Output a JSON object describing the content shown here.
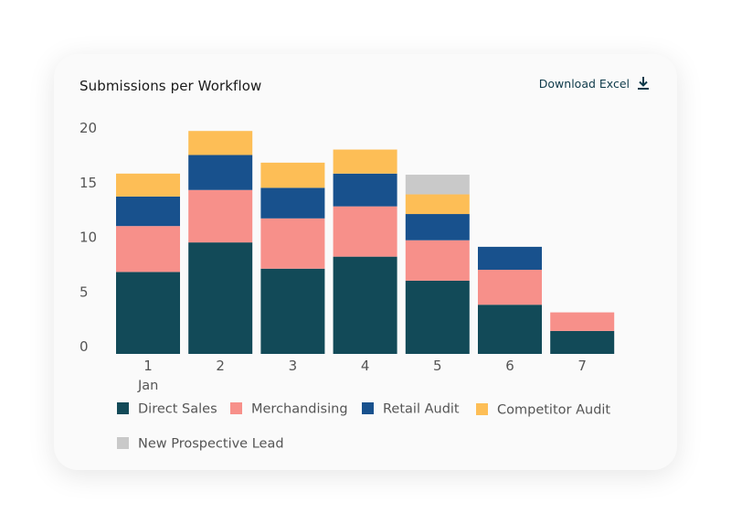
{
  "header": {
    "title": "Submissions per Workflow",
    "download_label": "Download Excel"
  },
  "colors": {
    "Direct Sales": "#124a58",
    "Merchandising": "#f7908a",
    "Retail Audit": "#18518d",
    "Competitor Audit": "#fdbe56",
    "New Prospective Lead": "#c9c9c9"
  },
  "chart_data": {
    "type": "bar",
    "stacked": true,
    "title": "Submissions per Workflow",
    "categories": [
      "1",
      "2",
      "3",
      "4",
      "5",
      "6",
      "7"
    ],
    "x_sublabel": "Jan",
    "ylim": [
      0,
      20
    ],
    "yticks": [
      0,
      5,
      10,
      15,
      20
    ],
    "grid": false,
    "legend_position": "bottom",
    "series": [
      {
        "name": "Direct Sales",
        "values": [
          7.5,
          10.2,
          7.8,
          8.9,
          6.7,
          4.5,
          2.1
        ]
      },
      {
        "name": "Merchandising",
        "values": [
          4.2,
          4.8,
          4.6,
          4.6,
          3.7,
          3.2,
          1.7
        ]
      },
      {
        "name": "Retail Audit",
        "values": [
          2.7,
          3.2,
          2.8,
          3.0,
          2.4,
          2.1,
          0
        ]
      },
      {
        "name": "Competitor Audit",
        "values": [
          2.1,
          2.2,
          2.3,
          2.2,
          1.8,
          0,
          0
        ]
      },
      {
        "name": "New Prospective Lead",
        "values": [
          0,
          0,
          0,
          0,
          1.8,
          0,
          0
        ]
      }
    ]
  }
}
